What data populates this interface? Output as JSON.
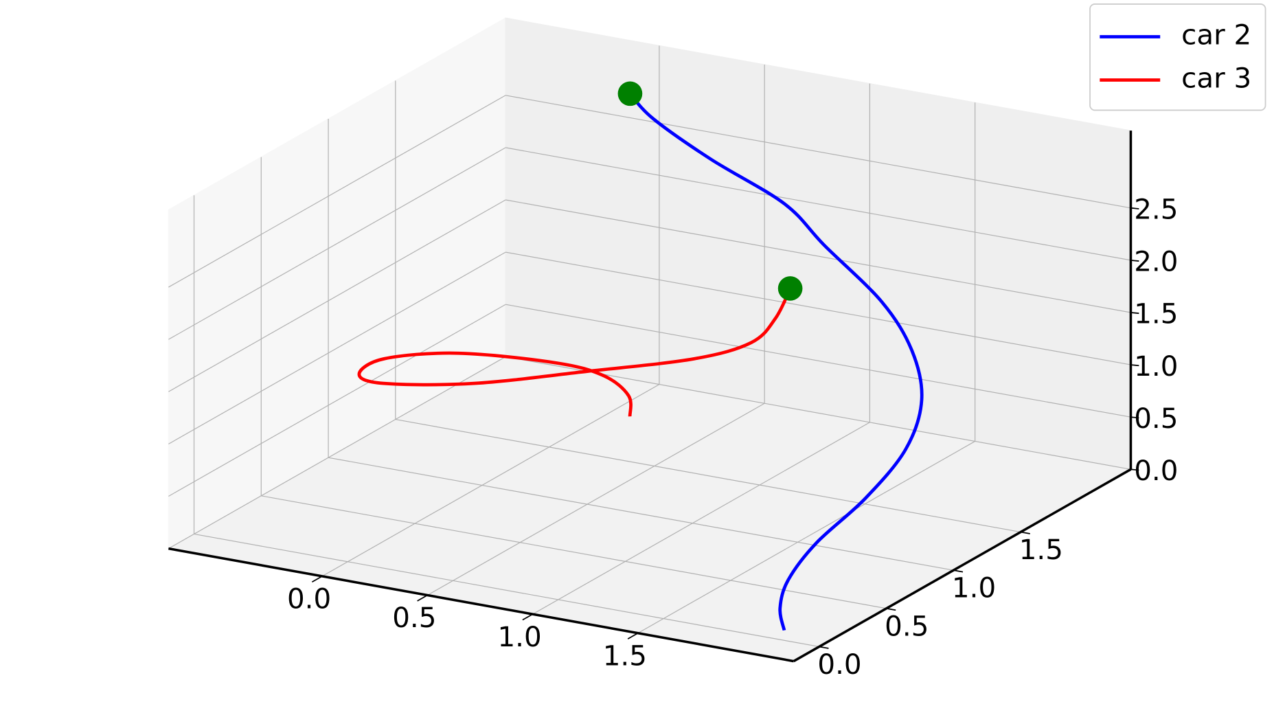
{
  "chart_data": {
    "type": "line3d",
    "xlim": [
      -0.73,
      2.24
    ],
    "ylim": [
      -0.19,
      2.32
    ],
    "zlim": [
      0,
      3.24
    ],
    "xticks": [
      {
        "value": 0,
        "label": "0.0"
      },
      {
        "value": 0.5,
        "label": "0.5"
      },
      {
        "value": 1,
        "label": "1.0"
      },
      {
        "value": 1.5,
        "label": "1.5"
      }
    ],
    "yticks": [
      {
        "value": 0,
        "label": "0.0"
      },
      {
        "value": 0.5,
        "label": "0.5"
      },
      {
        "value": 1,
        "label": "1.0"
      },
      {
        "value": 1.5,
        "label": "1.5"
      }
    ],
    "zticks": [
      {
        "value": 0,
        "label": "0.0"
      },
      {
        "value": 0.5,
        "label": "0.5"
      },
      {
        "value": 1,
        "label": "1.0"
      },
      {
        "value": 1.5,
        "label": "1.5"
      },
      {
        "value": 2,
        "label": "2.0"
      },
      {
        "value": 2.5,
        "label": "2.5"
      }
    ],
    "grid": true,
    "legend": "upper right",
    "start_marker_color": "green",
    "series": [
      {
        "name": "car 2",
        "color": "blue",
        "x": [
          0.04,
          0.15,
          0.45,
          0.83,
          1.07,
          1.44,
          1.66,
          1.84,
          1.93,
          1.93,
          1.87,
          1.87,
          1.92,
          2.01
        ],
        "y": [
          2.04,
          2.04,
          2.0,
          1.95,
          1.87,
          1.72,
          1.6,
          1.39,
          1.13,
          0.83,
          0.56,
          0.35,
          0.21,
          0.1
        ],
        "z": [
          3.0,
          2.8,
          2.55,
          2.3,
          2.05,
          1.75,
          1.45,
          1.2,
          0.95,
          0.7,
          0.45,
          0.25,
          0.1,
          0.0
        ]
      },
      {
        "name": "car 3",
        "color": "red",
        "x": [
          1.19,
          1.26,
          1.26,
          1.09,
          0.72,
          0.32,
          -0.04,
          -0.22,
          -0.26,
          -0.06,
          0.32,
          0.54,
          0.69,
          0.76
        ],
        "y": [
          1.43,
          1.21,
          1.03,
          0.87,
          0.66,
          0.44,
          0.33,
          0.43,
          0.68,
          0.92,
          1.05,
          1.06,
          1.01,
          0.91
        ],
        "z": [
          2.0,
          1.9,
          1.8,
          1.7,
          1.6,
          1.5,
          1.45,
          1.4,
          1.35,
          1.3,
          1.25,
          1.2,
          1.1,
          1.0
        ]
      }
    ]
  }
}
